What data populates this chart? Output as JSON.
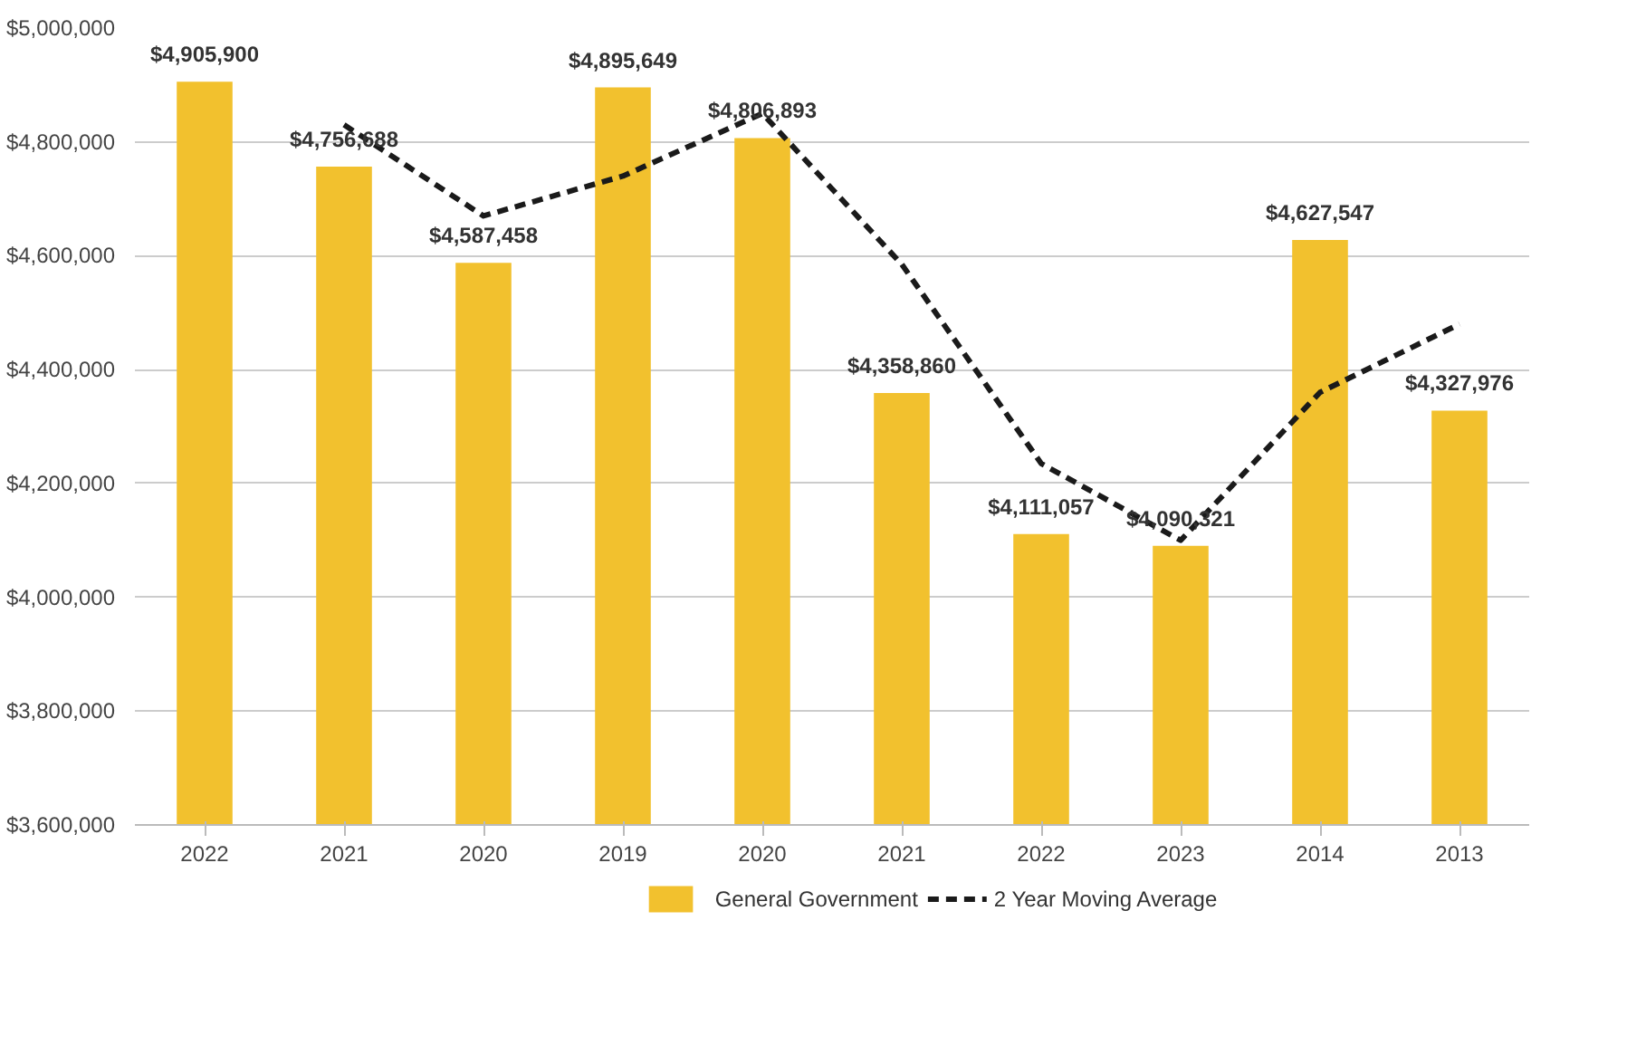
{
  "chart_data": {
    "type": "bar",
    "categories": [
      "2022",
      "2021",
      "2020",
      "2019",
      "2020",
      "2021",
      "2022",
      "2023",
      "2014",
      "2013"
    ],
    "series": [
      {
        "name": "General Government",
        "color": "#f2c12e",
        "values": [
          4905900,
          4756688,
          4587458,
          4895649,
          4806893,
          4358860,
          4111057,
          4090321,
          4627547,
          4327976
        ],
        "value_labels": [
          "$4,905,900",
          "$4,756,688",
          "$4,587,458",
          "$4,895,649",
          "$4,806,893",
          "$4,358,860",
          "$4,111,057",
          "$4,090,321",
          "$4,627,547",
          "$4,327,976"
        ]
      },
      {
        "name": "2 Year Moving Average",
        "type": "line",
        "color": "#1a1a1a",
        "line_style": "dashed",
        "values": [
          null,
          4830000,
          4670000,
          4740000,
          4850000,
          4585000,
          4235000,
          4100000,
          4360000,
          4480000
        ]
      }
    ],
    "ylim": [
      3600000,
      5000000
    ],
    "yticks": [
      {
        "value": 3600000,
        "label": "$3,600,000"
      },
      {
        "value": 3800000,
        "label": "$3,800,000"
      },
      {
        "value": 4000000,
        "label": "$4,000,000"
      },
      {
        "value": 4200000,
        "label": "$4,200,000"
      },
      {
        "value": 4400000,
        "label": "$4,400,000"
      },
      {
        "value": 4600000,
        "label": "$4,600,000"
      },
      {
        "value": 4800000,
        "label": "$4,800,000"
      },
      {
        "value": 5000000,
        "label": "$5,000,000"
      }
    ],
    "grid": "y",
    "legend": "bottom"
  }
}
